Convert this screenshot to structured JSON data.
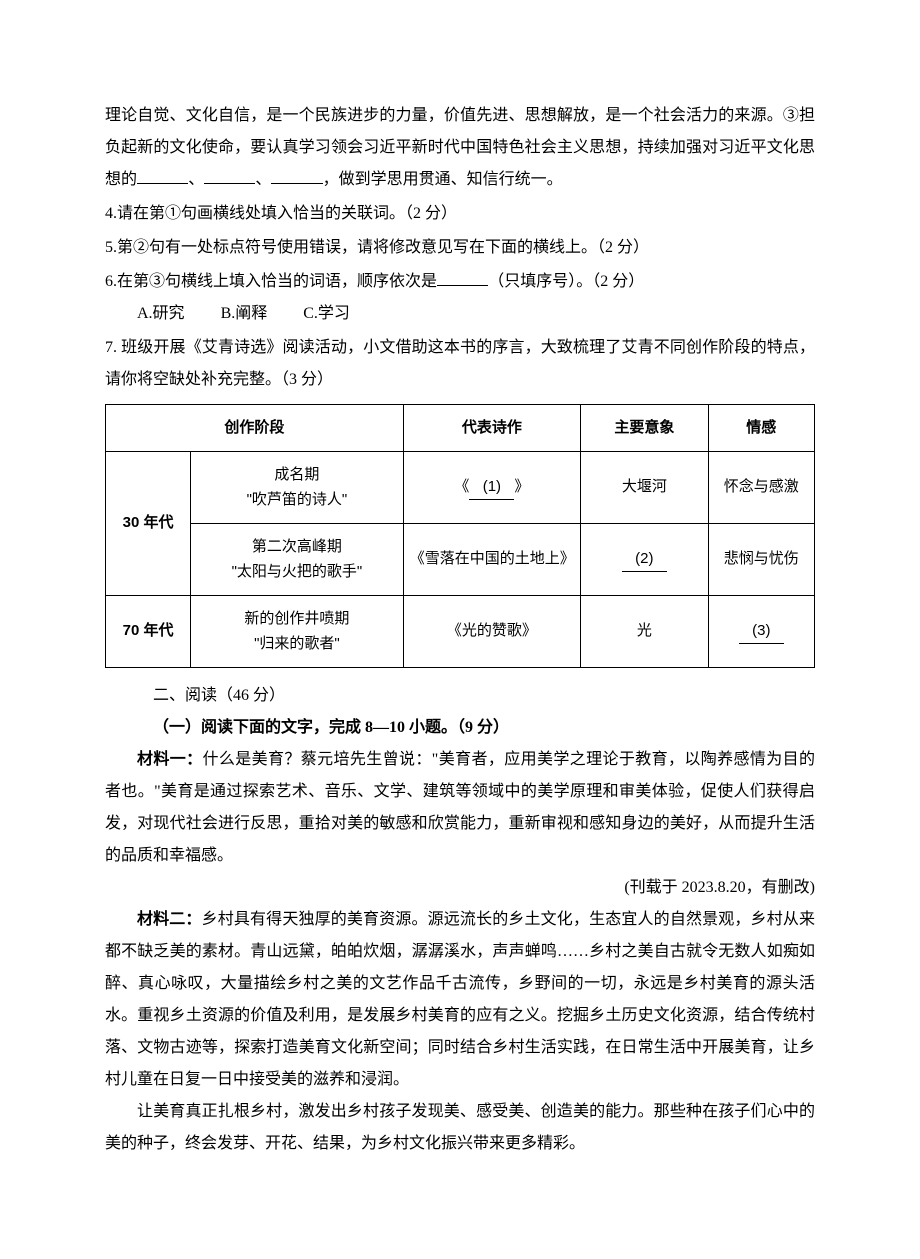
{
  "intro": {
    "p1a": "理论自觉、文化自信，是一个民族进步的力量，价值先进、思想解放，是一个社会活力的来源。③担负起新的文化使命，要认真学习领会习近平新时代中国特色社会主义思想，持续加强对习近平文化思想的",
    "sep1": "、",
    "sep2": "、",
    "p1b": "，做到学思用贯通、知信行统一。"
  },
  "q4": "4.请在第①句画横线处填入恰当的关联词。（2 分）",
  "q5": "5.第②句有一处标点符号使用错误，请将修改意见写在下面的横线上。（2 分）",
  "q6a": "6.在第③句横线上填入恰当的词语，顺序依次是",
  "q6b": "（只填序号）。（2 分）",
  "options": {
    "a": "A.研究",
    "b": "B.阐释",
    "c": "C.学习"
  },
  "q7": "7. 班级开展《艾青诗选》阅读活动，小文借助这本书的序言，大致梳理了艾青不同创作阶段的特点，请你将空缺处补充完整。（3 分）",
  "table": {
    "headers": {
      "stage": "创作阶段",
      "works": "代表诗作",
      "imagery": "主要意象",
      "emotion": "情感"
    },
    "rows": [
      {
        "era": "30 年代",
        "phase1": "成名期",
        "phase1b": "\"吹芦笛的诗人\"",
        "work1a": "《",
        "work1blank": "(1)",
        "work1b": "》",
        "imagery1": "大堰河",
        "emotion1": "怀念与感激",
        "phase2": "第二次高峰期",
        "phase2b": "\"太阳与火把的歌手\"",
        "work2": "《雪落在中国的土地上》",
        "imagery2blank": "(2)",
        "emotion2": "悲悯与忧伤"
      },
      {
        "era": "70 年代",
        "phase": "新的创作井喷期",
        "phaseb": "\"归来的歌者\"",
        "work": "《光的赞歌》",
        "imagery": "光",
        "emotionblank": "(3)"
      }
    ]
  },
  "section2": "二、阅读（46 分）",
  "section2_1": "（一）阅读下面的文字，完成 8—10 小题。（9 分）",
  "material1_label": "材料一：",
  "material1_text": "什么是美育？蔡元培先生曾说：\"美育者，应用美学之理论于教育，以陶养感情为目的者也。\"美育是通过探索艺术、音乐、文学、建筑等领域中的美学原理和审美体验，促使人们获得启发，对现代社会进行反思，重拾对美的敏感和欣赏能力，重新审视和感知身边的美好，从而提升生活的品质和幸福感。",
  "material1_source": "(刊载于 2023.8.20，有删改)",
  "material2_label": "材料二：",
  "material2_p1": "乡村具有得天独厚的美育资源。源远流长的乡土文化，生态宜人的自然景观，乡村从来都不缺乏美的素材。青山远黛，㿟㿟炊烟，潺潺溪水，声声蝉鸣……乡村之美自古就令无数人如痴如醉、真心咏叹，大量描绘乡村之美的文艺作品千古流传，乡野间的一切，永远是乡村美育的源头活水。重视乡土资源的价值及利用，是发展乡村美育的应有之义。挖掘乡土历史文化资源，结合传统村落、文物古迹等，探索打造美育文化新空间；同时结合乡村生活实践，在日常生活中开展美育，让乡村儿童在日复一日中接受美的滋养和浸润。",
  "material2_p2": "让美育真正扎根乡村，激发出乡村孩子发现美、感受美、创造美的能力。那些种在孩子们心中的美的种子，终会发芽、开花、结果，为乡村文化振兴带来更多精彩。"
}
